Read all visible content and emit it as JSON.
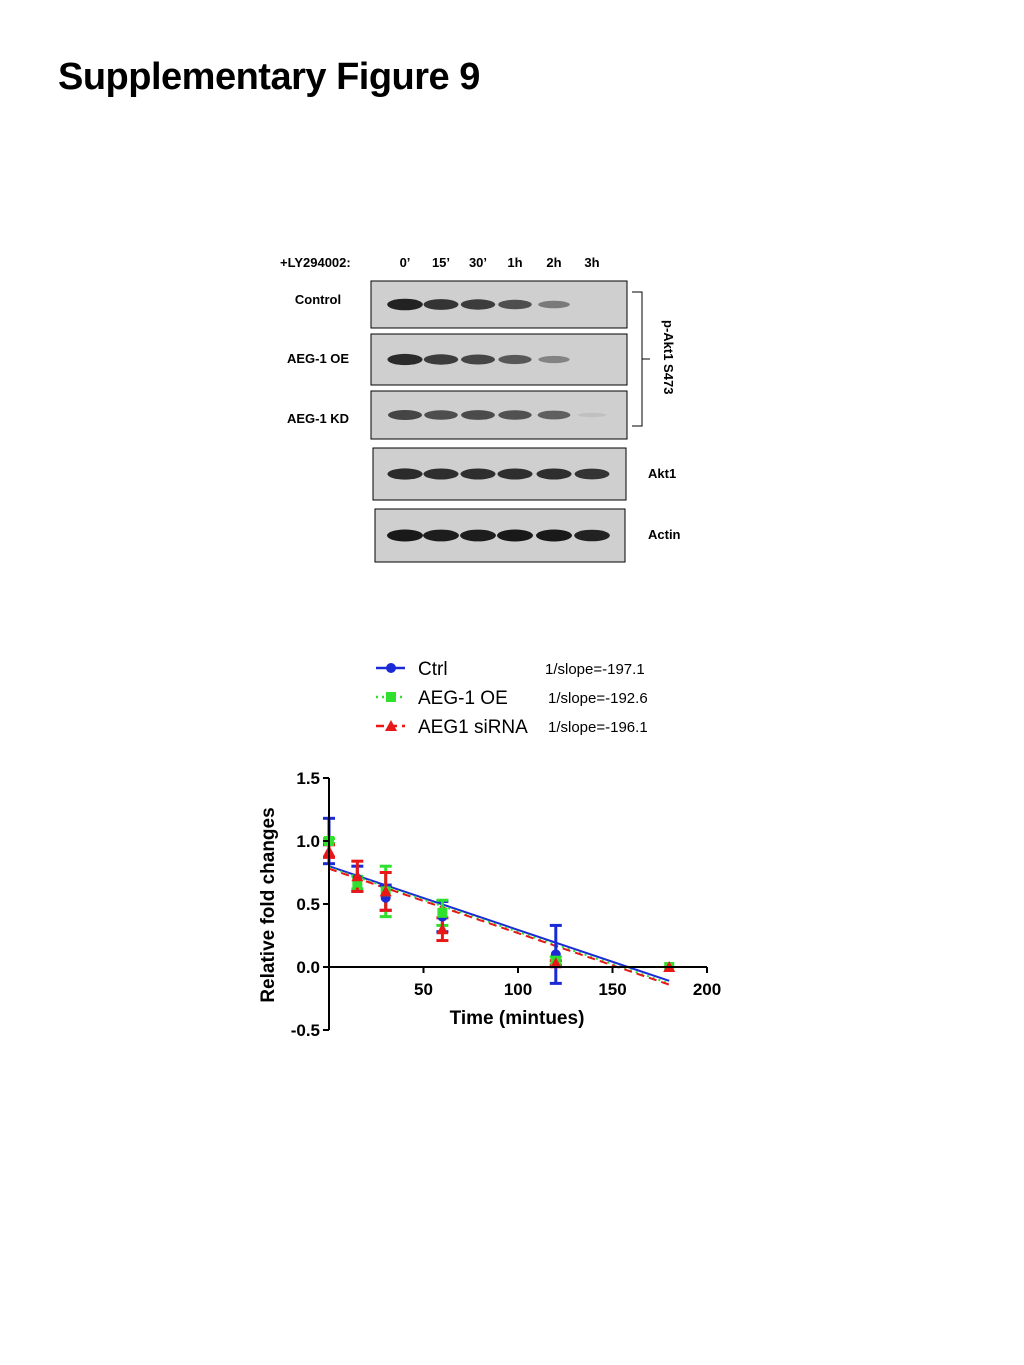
{
  "title": "Supplementary Figure 9",
  "blot": {
    "treatment_label": "+LY294002:",
    "timepoints": [
      "0’",
      "15’",
      "30’",
      "1h",
      "2h",
      "3h"
    ],
    "panels": [
      {
        "label": "Control",
        "intensity": [
          0.95,
          0.85,
          0.8,
          0.7,
          0.45,
          0.0
        ]
      },
      {
        "label": "AEG-1 OE",
        "intensity": [
          0.9,
          0.8,
          0.75,
          0.65,
          0.4,
          0.0
        ]
      },
      {
        "label": "AEG-1 KD",
        "intensity": [
          0.75,
          0.7,
          0.72,
          0.68,
          0.6,
          0.05
        ]
      },
      {
        "label": "",
        "intensity": [
          0.9,
          0.88,
          0.88,
          0.88,
          0.88,
          0.85
        ]
      },
      {
        "label": "",
        "intensity": [
          1.0,
          0.98,
          0.98,
          1.0,
          1.0,
          0.95
        ]
      }
    ],
    "bracket_label": "p-Akt1 S473",
    "right_labels": [
      "Akt1",
      "Actin"
    ]
  },
  "chart_data": {
    "type": "scatter",
    "xlabel": "Time (mintues)",
    "ylabel": "Relative fold changes",
    "xlim": [
      0,
      200
    ],
    "ylim": [
      -0.5,
      1.5
    ],
    "x_ticks": [
      "50",
      "100",
      "150",
      "200"
    ],
    "y_ticks": [
      "1.5",
      "1.0",
      "0.5",
      "0.0",
      "-0.5"
    ],
    "series": [
      {
        "name": "Ctrl",
        "annotation": "1/slope=-197.1",
        "color": "#1a2bd6",
        "marker": "circle",
        "line": "solid",
        "x": [
          0,
          15,
          30,
          60,
          120,
          180
        ],
        "y": [
          1.0,
          0.7,
          0.55,
          0.4,
          0.1,
          0.0
        ],
        "err": [
          0.18,
          0.1,
          0.1,
          0.12,
          0.23,
          0.0
        ],
        "fit": {
          "x": [
            0,
            180
          ],
          "y": [
            0.8,
            -0.11
          ]
        }
      },
      {
        "name": "AEG-1 OE",
        "annotation": "1/slope=-192.6",
        "color": "#2fe02f",
        "marker": "square",
        "line": "dotted",
        "x": [
          0,
          15,
          30,
          60,
          120,
          180
        ],
        "y": [
          1.0,
          0.67,
          0.6,
          0.43,
          0.05,
          0.0
        ],
        "err": [
          0.02,
          0.05,
          0.2,
          0.1,
          0.03,
          0.0
        ],
        "fit": {
          "x": [
            0,
            180
          ],
          "y": [
            0.79,
            -0.13
          ]
        }
      },
      {
        "name": "AEG1 siRNA",
        "annotation": "1/slope=-196.1",
        "color": "#e81818",
        "marker": "triangle",
        "line": "dashed",
        "x": [
          0,
          15,
          30,
          60,
          120,
          180
        ],
        "y": [
          0.92,
          0.72,
          0.6,
          0.3,
          0.03,
          0.0
        ],
        "err": [
          0.05,
          0.12,
          0.15,
          0.09,
          0.02,
          0.0
        ],
        "fit": {
          "x": [
            0,
            180
          ],
          "y": [
            0.78,
            -0.14
          ]
        }
      }
    ]
  }
}
